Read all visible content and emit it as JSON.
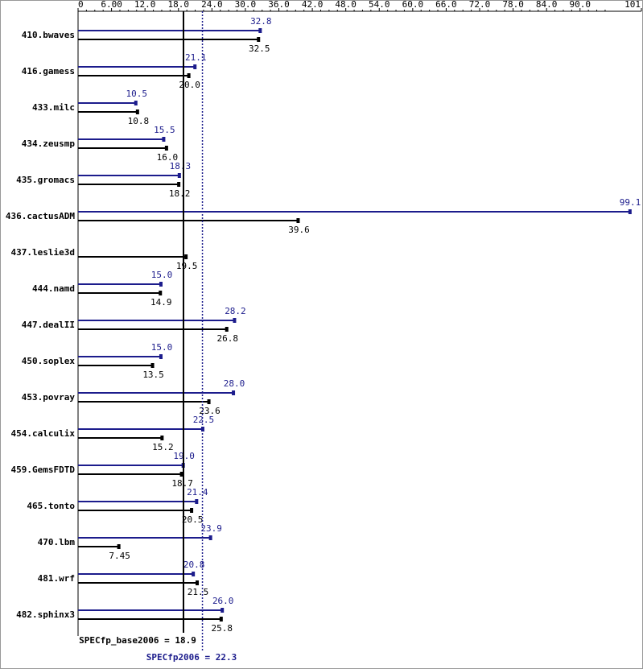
{
  "chart_data": {
    "type": "bar",
    "categories": [
      "410.bwaves",
      "416.gamess",
      "433.milc",
      "434.zeusmp",
      "435.gromacs",
      "436.cactusADM",
      "437.leslie3d",
      "444.namd",
      "447.dealII",
      "450.soplex",
      "453.povray",
      "454.calculix",
      "459.GemsFDTD",
      "465.tonto",
      "470.lbm",
      "481.wrf",
      "482.sphinx3"
    ],
    "series": [
      {
        "color": "#1c1c8c",
        "values": [
          32.8,
          21.1,
          10.5,
          15.5,
          18.3,
          99.1,
          null,
          15.0,
          28.2,
          15.0,
          28.0,
          22.5,
          19.0,
          21.4,
          23.9,
          20.8,
          26.0
        ],
        "value_labels": [
          "32.8",
          "21.1",
          "10.5",
          "15.5",
          "18.3",
          "99.1",
          null,
          "15.0",
          "28.2",
          "15.0",
          "28.0",
          "22.5",
          "19.0",
          "21.4",
          "23.9",
          "20.8",
          "26.0"
        ]
      },
      {
        "color": "#000000",
        "values": [
          32.5,
          20.0,
          10.8,
          16.0,
          18.2,
          39.6,
          19.5,
          14.9,
          26.8,
          13.5,
          23.6,
          15.2,
          18.7,
          20.5,
          7.45,
          21.5,
          25.8
        ],
        "value_labels": [
          "32.5",
          "20.0",
          "10.8",
          "16.0",
          "18.2",
          "39.6",
          "19.5",
          "14.9",
          "26.8",
          "13.5",
          "23.6",
          "15.2",
          "18.7",
          "20.5",
          "7.45",
          "21.5",
          "25.8"
        ]
      }
    ],
    "xlim": [
      0,
      101
    ],
    "xticks": [
      0,
      {
        "value": 6,
        "label": "6.00"
      },
      {
        "value": 12,
        "label": "12.0"
      },
      {
        "value": 18,
        "label": "18.0"
      },
      {
        "value": 24,
        "label": "24.0"
      },
      {
        "value": 30,
        "label": "30.0"
      },
      {
        "value": 36,
        "label": "36.0"
      },
      {
        "value": 42,
        "label": "42.0"
      },
      {
        "value": 48,
        "label": "48.0"
      },
      {
        "value": 54,
        "label": "54.0"
      },
      {
        "value": 60,
        "label": "60.0"
      },
      {
        "value": 66,
        "label": "66.0"
      },
      {
        "value": 72,
        "label": "72.0"
      },
      {
        "value": 78,
        "label": "78.0"
      },
      {
        "value": 84,
        "label": "84.0"
      },
      {
        "value": 90,
        "label": "90.0"
      },
      101
    ],
    "reference_lines": [
      {
        "label": "SPECfp_base2006 = 18.9",
        "value": 18.9,
        "color": "#000000",
        "dotted": false
      },
      {
        "label": "SPECfp2006 = 22.3",
        "value": 22.3,
        "color": "#1c1c8c",
        "dotted": true
      }
    ]
  }
}
